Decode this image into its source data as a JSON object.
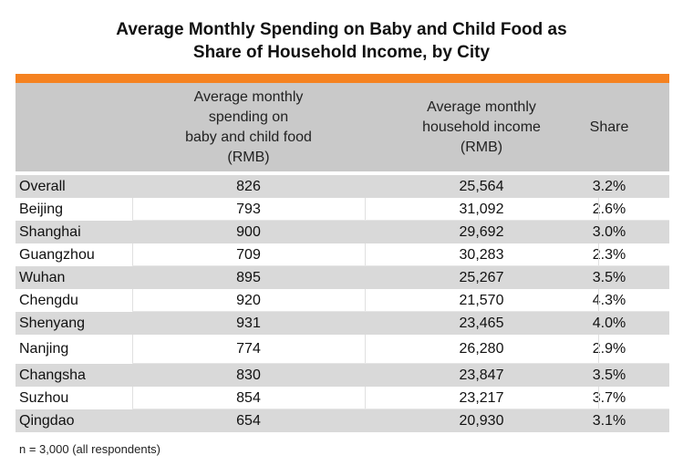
{
  "chart_data": {
    "type": "table",
    "title_lines": [
      "Average Monthly Spending on Baby and Child Food as",
      "Share of Household Income, by City"
    ],
    "accent_color": "#f58220",
    "columns": [
      "",
      "Average monthly\nspending on\nbaby and child food\n(RMB)",
      "Average monthly\nhousehold income\n(RMB)",
      "Share"
    ],
    "rows": [
      {
        "city": "Overall",
        "spending": "826",
        "income": "25,564",
        "share": "3.2%"
      },
      {
        "city": "Beijing",
        "spending": "793",
        "income": "31,092",
        "share": "2.6%"
      },
      {
        "city": "Shanghai",
        "spending": "900",
        "income": "29,692",
        "share": "3.0%"
      },
      {
        "city": "Guangzhou",
        "spending": "709",
        "income": "30,283",
        "share": "2.3%"
      },
      {
        "city": "Wuhan",
        "spending": "895",
        "income": "25,267",
        "share": "3.5%"
      },
      {
        "city": "Chengdu",
        "spending": "920",
        "income": "21,570",
        "share": "4.3%"
      },
      {
        "city": "Shenyang",
        "spending": "931",
        "income": "23,465",
        "share": "4.0%"
      },
      {
        "city": "Nanjing",
        "spending": "774",
        "income": "26,280",
        "share": "2.9%"
      },
      {
        "city": "Changsha",
        "spending": "830",
        "income": "23,847",
        "share": "3.5%"
      },
      {
        "city": "Suzhou",
        "spending": "854",
        "income": "23,217",
        "share": "3.7%"
      },
      {
        "city": "Qingdao",
        "spending": "654",
        "income": "20,930",
        "share": "3.1%"
      }
    ],
    "note": "n = 3,000 (all respondents)"
  }
}
